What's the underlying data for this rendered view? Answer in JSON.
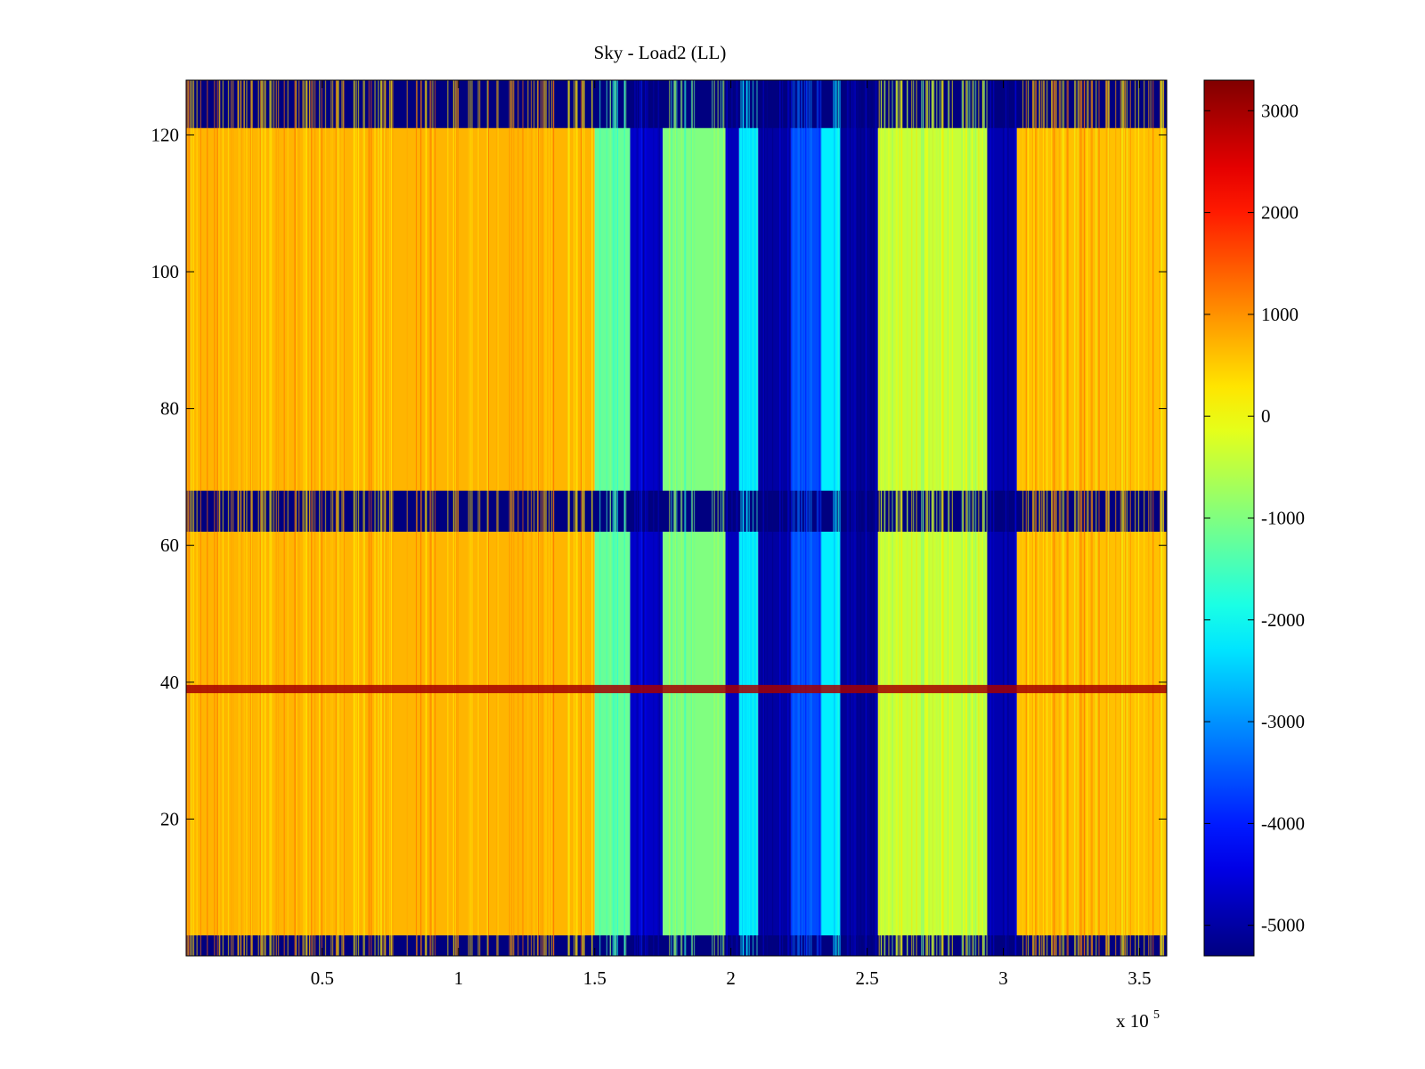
{
  "chart_data": {
    "type": "heatmap",
    "title": "Sky - Load2 (LL)",
    "xlabel": "",
    "ylabel": "",
    "x_multiplier_label": "x 10",
    "x_multiplier_exponent": "5",
    "xlim": [
      0,
      3.6
    ],
    "ylim": [
      0,
      128
    ],
    "x_ticks": [
      0.5,
      1,
      1.5,
      2,
      2.5,
      3,
      3.5
    ],
    "x_tick_labels": [
      "0.5",
      "1",
      "1.5",
      "2",
      "2.5",
      "3",
      "3.5"
    ],
    "y_ticks": [
      20,
      40,
      60,
      80,
      100,
      120
    ],
    "y_tick_labels": [
      "20",
      "40",
      "60",
      "80",
      "100",
      "120"
    ],
    "colorbar": {
      "colormap": "jet",
      "clim": [
        -5300,
        3300
      ],
      "ticks": [
        3000,
        2000,
        1000,
        0,
        -1000,
        -2000,
        -3000,
        -4000,
        -5000
      ],
      "tick_labels": [
        "3000",
        "2000",
        "1000",
        "0",
        "-1000",
        "-2000",
        "-3000",
        "-4000",
        "-5000"
      ]
    },
    "masked_row_bands": [
      [
        0,
        3
      ],
      [
        62,
        68
      ],
      [
        121,
        128
      ]
    ],
    "masked_value": -5300,
    "column_regions": [
      {
        "x_range": [
          0.0,
          1.5
        ],
        "value": 700
      },
      {
        "x_range": [
          1.5,
          1.63
        ],
        "value": -1200
      },
      {
        "x_range": [
          1.63,
          1.75
        ],
        "value": -4700
      },
      {
        "x_range": [
          1.75,
          1.98
        ],
        "value": -1000
      },
      {
        "x_range": [
          1.98,
          2.03
        ],
        "value": -4800
      },
      {
        "x_range": [
          2.03,
          2.1
        ],
        "value": -2300
      },
      {
        "x_range": [
          2.1,
          2.22
        ],
        "value": -5000
      },
      {
        "x_range": [
          2.22,
          2.33
        ],
        "value": -3600
      },
      {
        "x_range": [
          2.33,
          2.4
        ],
        "value": -2200
      },
      {
        "x_range": [
          2.4,
          2.54
        ],
        "value": -5100
      },
      {
        "x_range": [
          2.54,
          2.94
        ],
        "value": -400
      },
      {
        "x_range": [
          2.94,
          3.05
        ],
        "value": -4900
      },
      {
        "x_range": [
          3.05,
          3.6
        ],
        "value": 600
      }
    ],
    "hot_row": {
      "y": 39,
      "value": 3000
    }
  },
  "colors": {
    "axis": "#000000",
    "background": "#ffffff"
  }
}
